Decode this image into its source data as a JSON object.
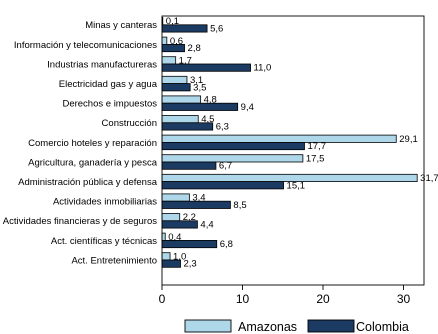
{
  "chart_data": {
    "type": "bar",
    "orientation": "horizontal",
    "title": "",
    "xlabel": "",
    "ylabel": "",
    "xlim": [
      0,
      33
    ],
    "xticks": [
      0,
      10,
      20,
      30
    ],
    "grid": false,
    "legend_position": "bottom",
    "categories": [
      "Minas y canteras",
      "Información y telecomunicaciones",
      "Industrias manufactureras",
      "Electricidad gas y agua",
      "Derechos e impuestos",
      "Construcción",
      "Comercio hoteles y reparación",
      "Agricultura, ganadería y pesca",
      "Administración pública y defensa",
      "Actividades inmobiliarias",
      "Actividades financieras y de seguros",
      "Act. científicas y técnicas",
      "Act. Entretenimiento"
    ],
    "series": [
      {
        "name": "Amazonas",
        "color": "#aed8ea",
        "values": [
          0.1,
          0.6,
          1.7,
          3.1,
          4.8,
          4.5,
          29.1,
          17.5,
          31.7,
          3.4,
          2.2,
          0.4,
          1.0
        ],
        "labels": [
          "0,1",
          "0,6",
          "1,7",
          "3,1",
          "4,8",
          "4,5",
          "29,1",
          "17,5",
          "31,7",
          "3,4",
          "2,2",
          "0,4",
          "1,0"
        ]
      },
      {
        "name": "Colombia",
        "color": "#1c3b63",
        "values": [
          5.6,
          2.8,
          11.0,
          3.5,
          9.4,
          6.3,
          17.7,
          6.7,
          15.1,
          8.5,
          4.4,
          6.8,
          2.3
        ],
        "labels": [
          "5,6",
          "2,8",
          "11,0",
          "3,5",
          "9,4",
          "6,3",
          "17,7",
          "6,7",
          "15,1",
          "8,5",
          "4,4",
          "6,8",
          "2,3"
        ]
      }
    ],
    "tick_labels": [
      "0",
      "10",
      "20",
      "30"
    ]
  }
}
